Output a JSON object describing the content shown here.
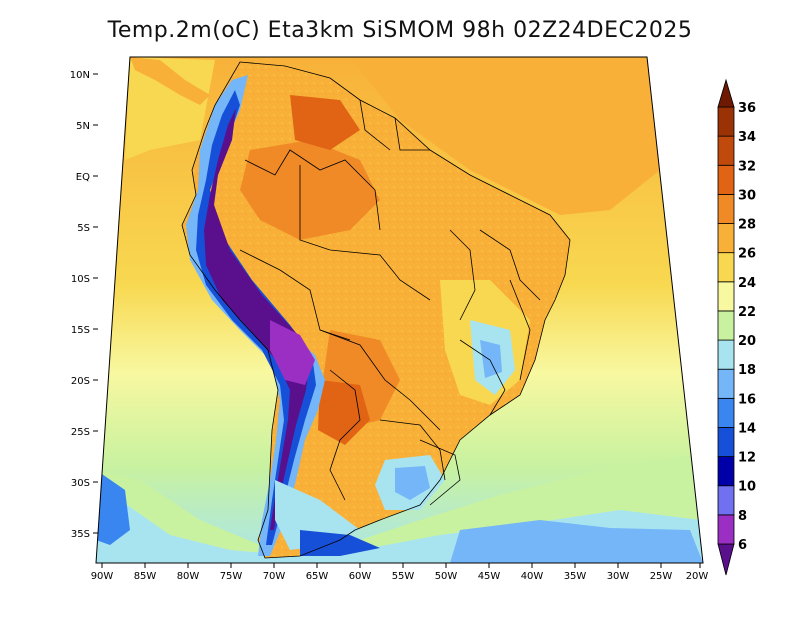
{
  "title": "Temp.2m(oC) Eta3km SiSMOM 98h 02Z24DEC2025",
  "variable": "Temp.2m",
  "units": "oC",
  "model": "Eta3km",
  "run": "SiSMOM",
  "lead_time": "98h",
  "valid_time": "02Z24DEC2025",
  "lat_labels": [
    "10N",
    "5N",
    "EQ",
    "5S",
    "10S",
    "15S",
    "20S",
    "25S",
    "30S",
    "35S"
  ],
  "lon_labels": [
    "90W",
    "85W",
    "80W",
    "75W",
    "70W",
    "65W",
    "60W",
    "55W",
    "50W",
    "45W",
    "40W",
    "35W",
    "30W",
    "25W",
    "20W"
  ],
  "colorbar": {
    "levels": [
      "6",
      "8",
      "10",
      "12",
      "14",
      "16",
      "18",
      "20",
      "22",
      "24",
      "26",
      "28",
      "30",
      "32",
      "34",
      "36"
    ],
    "colors": [
      "#5a0f8c",
      "#9b2fc4",
      "#7070f0",
      "#0000a8",
      "#1650d8",
      "#3a86f0",
      "#74b6f8",
      "#a8e4f0",
      "#c8f2a0",
      "#f8f8a0",
      "#f8d850",
      "#f8b038",
      "#f08a26",
      "#e06414",
      "#c04a0c",
      "#9a3206",
      "#6e1a02"
    ]
  },
  "palette": {
    "ocean_warm": "#f8b038",
    "ocean_mid": "#f8d850",
    "ocean_cool": "#f8f8a0",
    "ocean_cold": "#c8f2a0",
    "land_base": "#f8b038",
    "andes_high": "#5a0f8c"
  }
}
